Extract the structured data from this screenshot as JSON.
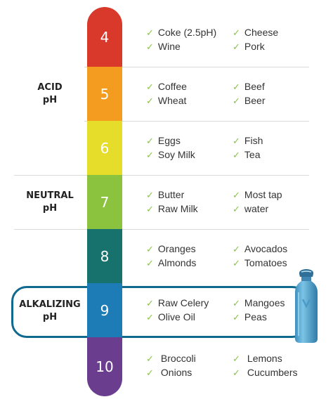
{
  "side_labels": [
    {
      "line1": "ACID",
      "line2": "pH"
    },
    {
      "line1": "NEUTRAL",
      "line2": "pH"
    },
    {
      "line1": "ALKALIZING",
      "line2": "pH"
    }
  ],
  "scale": [
    {
      "value": "4",
      "color": "#d8392b"
    },
    {
      "value": "5",
      "color": "#f39c1f"
    },
    {
      "value": "6",
      "color": "#e6dc2a"
    },
    {
      "value": "7",
      "color": "#8bc33f"
    },
    {
      "value": "8",
      "color": "#17716d"
    },
    {
      "value": "9",
      "color": "#1d7cb6"
    },
    {
      "value": "10",
      "color": "#6b3d8f"
    }
  ],
  "foods": [
    {
      "left": [
        "Coke (2.5pH)",
        "Wine"
      ],
      "right": [
        "Cheese",
        "Pork"
      ]
    },
    {
      "left": [
        "Coffee",
        "Wheat"
      ],
      "right": [
        "Beef",
        "Beer"
      ]
    },
    {
      "left": [
        "Eggs",
        "Soy Milk"
      ],
      "right": [
        "Fish",
        "Tea"
      ]
    },
    {
      "left": [
        "Butter",
        "Raw Milk"
      ],
      "right": [
        "Most tap",
        "water"
      ]
    },
    {
      "left": [
        "Oranges",
        "Almonds"
      ],
      "right": [
        "Avocados",
        "Tomatoes"
      ]
    },
    {
      "left": [
        "Raw Celery",
        "Olive Oil"
      ],
      "right": [
        "Mangoes",
        "Peas"
      ]
    },
    {
      "left": [
        "Broccoli",
        "Onions"
      ],
      "right": [
        "Lemons",
        "Cucumbers"
      ]
    }
  ],
  "check_glyph": "✓",
  "colors": {
    "highlight_frame": "#0f6a8e",
    "check": "#8bc34a",
    "bottle": "#5aaed6"
  }
}
